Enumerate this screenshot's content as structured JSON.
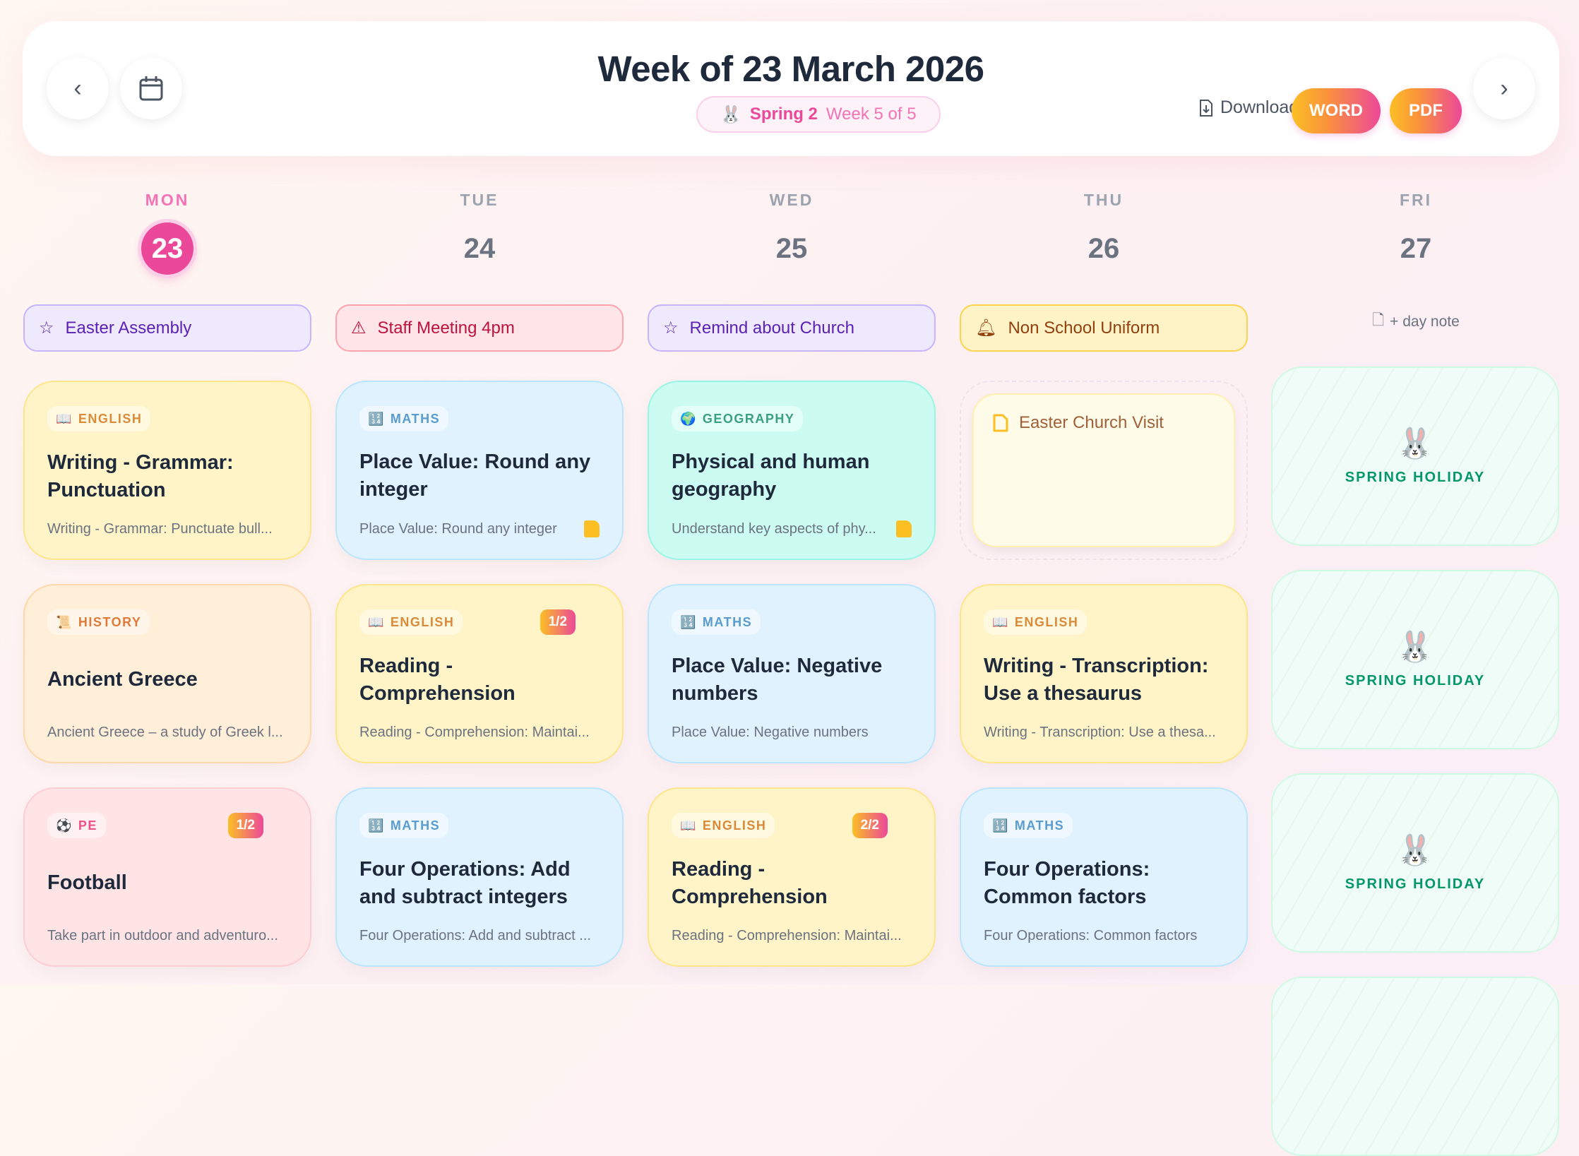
{
  "header": {
    "title": "Week of 23 March 2026",
    "term_icon": "🐰",
    "term_name": "Spring 2",
    "term_week": "Week 5 of 5",
    "download_label": "Download",
    "word_label": "WORD",
    "pdf_label": "PDF"
  },
  "days": [
    {
      "name": "MON",
      "num": "23",
      "today": true
    },
    {
      "name": "TUE",
      "num": "24"
    },
    {
      "name": "WED",
      "num": "25"
    },
    {
      "name": "THU",
      "num": "26"
    },
    {
      "name": "FRI",
      "num": "27"
    }
  ],
  "alerts": [
    {
      "icon": "star",
      "text": "Easter Assembly"
    },
    {
      "icon": "warning",
      "text": "Staff Meeting 4pm"
    },
    {
      "icon": "star",
      "text": "Remind about Church"
    },
    {
      "icon": "bell",
      "text": "Non School Uniform"
    }
  ],
  "day_note_label": "+ day note",
  "lessons": [
    [
      {
        "subject": "ENGLISH",
        "icon": "📖",
        "title": "Writing - Grammar: Punctuation",
        "desc": "Writing - Grammar: Punctuate bull..."
      },
      {
        "subject": "HISTORY",
        "icon": "📜",
        "title": "Ancient Greece",
        "desc": "Ancient Greece – a study of Greek l..."
      },
      {
        "subject": "PE",
        "icon": "⚽",
        "title": "Football",
        "desc": "Take part in outdoor and adventuro...",
        "part": "1/2"
      }
    ],
    [
      {
        "subject": "MATHS",
        "icon": "🔢",
        "title": "Place Value: Round any integer",
        "desc": "Place Value: Round any integer",
        "has_note": true
      },
      {
        "subject": "ENGLISH",
        "icon": "📖",
        "title": "Reading - Comprehension",
        "desc": "Reading - Comprehension: Maintai...",
        "part": "1/2"
      },
      {
        "subject": "MATHS",
        "icon": "🔢",
        "title": "Four Operations: Add and subtract integers",
        "desc": "Four Operations: Add and subtract ..."
      }
    ],
    [
      {
        "subject": "GEOGRAPHY",
        "icon": "🌍",
        "title": "Physical and human geography",
        "desc": "Understand key aspects of phy...",
        "has_note": true
      },
      {
        "subject": "MATHS",
        "icon": "🔢",
        "title": "Place Value: Negative numbers",
        "desc": "Place Value: Negative numbers"
      },
      {
        "subject": "ENGLISH",
        "icon": "📖",
        "title": "Reading - Comprehension",
        "desc": "Reading - Comprehension: Maintai...",
        "part": "2/2"
      }
    ],
    [
      {
        "note": "Easter Church Visit"
      },
      {
        "subject": "ENGLISH",
        "icon": "📖",
        "title": "Writing - Transcription: Use a thesaurus",
        "desc": "Writing - Transcription: Use a thesa..."
      },
      {
        "subject": "MATHS",
        "icon": "🔢",
        "title": "Four Operations: Common factors",
        "desc": "Four Operations: Common factors"
      }
    ]
  ],
  "holiday": {
    "icon": "🐰",
    "label": "SPRING HOLIDAY"
  }
}
